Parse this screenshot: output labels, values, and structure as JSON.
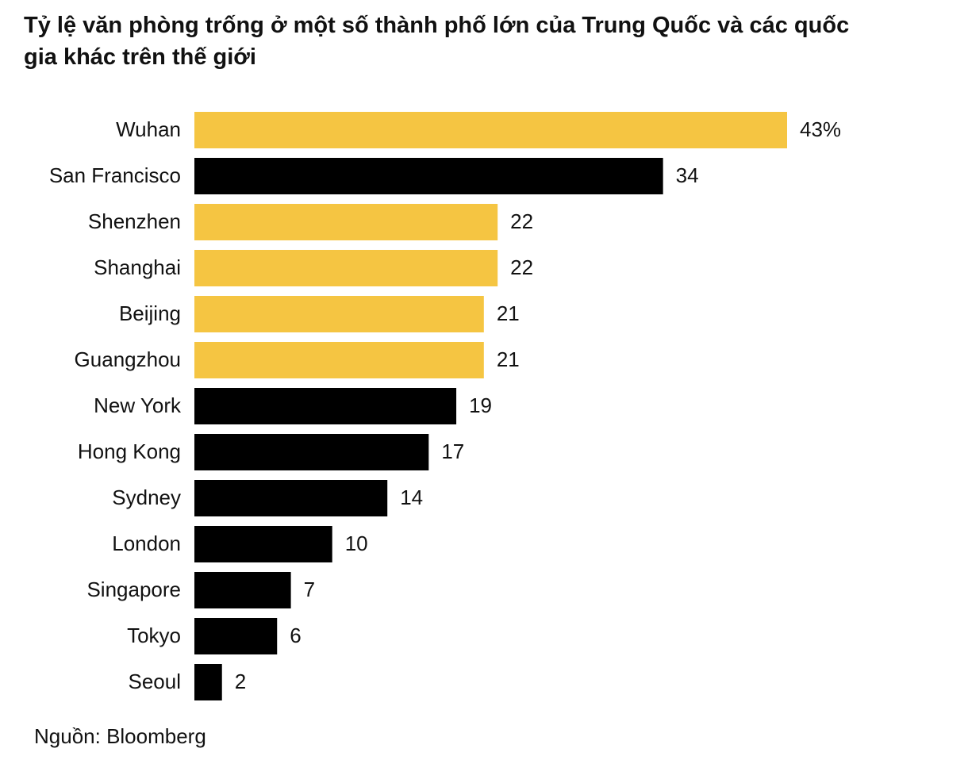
{
  "chart_data": {
    "type": "bar",
    "orientation": "horizontal",
    "title": "Tỷ lệ văn phòng trống ở một số thành phố lớn của Trung Quốc và các quốc gia khác trên thế giới",
    "categories": [
      "Wuhan",
      "San Francisco",
      "Shenzhen",
      "Shanghai",
      "Beijing",
      "Guangzhou",
      "New York",
      "Hong Kong",
      "Sydney",
      "London",
      "Singapore",
      "Tokyo",
      "Seoul"
    ],
    "values": [
      43,
      34,
      22,
      22,
      21,
      21,
      19,
      17,
      14,
      10,
      7,
      6,
      2
    ],
    "value_labels": [
      "43%",
      "34",
      "22",
      "22",
      "21",
      "21",
      "19",
      "17",
      "14",
      "10",
      "7",
      "6",
      "2"
    ],
    "colors": [
      "#f5c542",
      "#000000",
      "#f5c542",
      "#f5c542",
      "#f5c542",
      "#f5c542",
      "#000000",
      "#000000",
      "#000000",
      "#000000",
      "#000000",
      "#000000",
      "#000000"
    ],
    "source": "Nguồn: Bloomberg"
  }
}
